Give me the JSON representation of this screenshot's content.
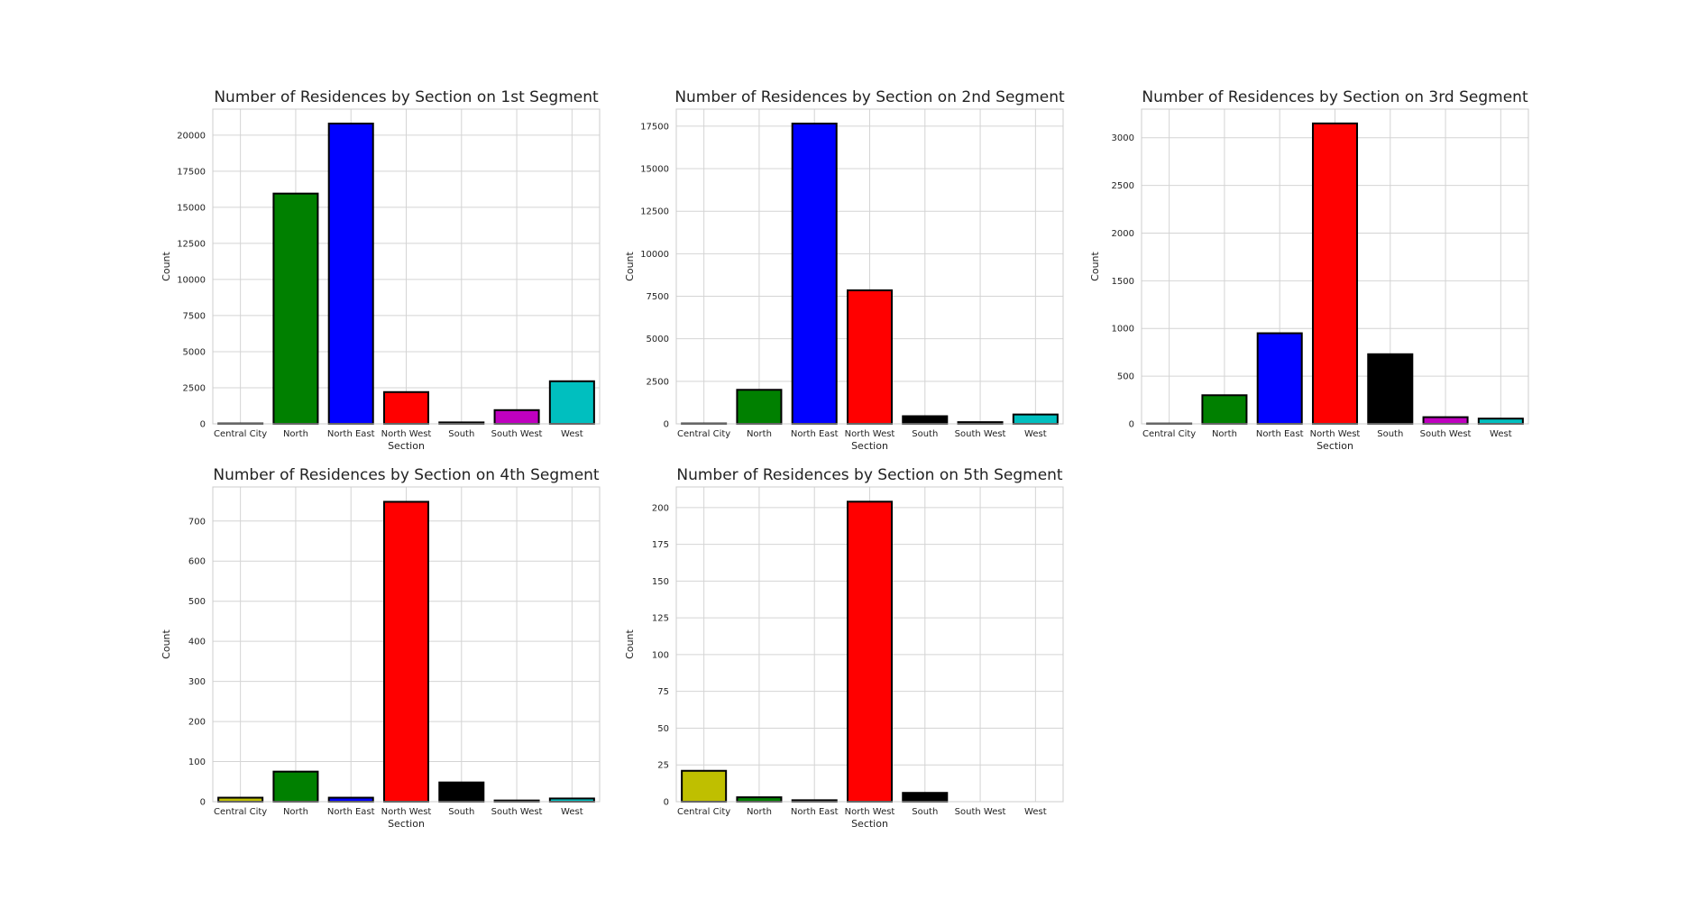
{
  "colors": {
    "yellow": "#bfbf00",
    "green": "#008000",
    "blue": "#0000ff",
    "red": "#ff0000",
    "black": "#000000",
    "magenta": "#bf00bf",
    "cyan": "#00bfbf",
    "grid": "#d4d4d4",
    "edge": "#000000"
  },
  "chart_data": [
    {
      "type": "bar",
      "title": "Number of Residences by Section on 1st Segment",
      "xlabel": "Section",
      "ylabel": "Count",
      "categories": [
        "Central City",
        "North",
        "North East",
        "North West",
        "South",
        "South West",
        "West"
      ],
      "values": [
        25,
        15950,
        20800,
        2200,
        100,
        950,
        2950
      ],
      "bar_colors": [
        "yellow",
        "green",
        "blue",
        "red",
        "black",
        "magenta",
        "cyan"
      ],
      "ylim": [
        0,
        21800
      ],
      "yticks": [
        0,
        2500,
        5000,
        7500,
        10000,
        12500,
        15000,
        17500,
        20000
      ],
      "grid": true
    },
    {
      "type": "bar",
      "title": "Number of Residences by Section on 2nd Segment",
      "xlabel": "Section",
      "ylabel": "Count",
      "categories": [
        "Central City",
        "North",
        "North East",
        "North West",
        "South",
        "South West",
        "West"
      ],
      "values": [
        20,
        2000,
        17650,
        7850,
        450,
        100,
        550
      ],
      "bar_colors": [
        "yellow",
        "green",
        "blue",
        "red",
        "black",
        "magenta",
        "cyan"
      ],
      "ylim": [
        0,
        18500
      ],
      "yticks": [
        0,
        2500,
        5000,
        7500,
        10000,
        12500,
        15000,
        17500
      ],
      "grid": true
    },
    {
      "type": "bar",
      "title": "Number of Residences by Section on 3rd Segment",
      "xlabel": "Section",
      "ylabel": "Count",
      "categories": [
        "Central City",
        "North",
        "North East",
        "North West",
        "South",
        "South West",
        "West"
      ],
      "values": [
        3,
        300,
        950,
        3150,
        730,
        70,
        55
      ],
      "bar_colors": [
        "yellow",
        "green",
        "blue",
        "red",
        "black",
        "magenta",
        "cyan"
      ],
      "ylim": [
        0,
        3300
      ],
      "yticks": [
        0,
        500,
        1000,
        1500,
        2000,
        2500,
        3000
      ],
      "grid": true
    },
    {
      "type": "bar",
      "title": "Number of Residences by Section on 4th Segment",
      "xlabel": "Section",
      "ylabel": "Count",
      "categories": [
        "Central City",
        "North",
        "North East",
        "North West",
        "South",
        "South West",
        "West"
      ],
      "values": [
        10,
        75,
        10,
        748,
        48,
        3,
        8
      ],
      "bar_colors": [
        "yellow",
        "green",
        "blue",
        "red",
        "black",
        "magenta",
        "cyan"
      ],
      "ylim": [
        0,
        785
      ],
      "yticks": [
        0,
        100,
        200,
        300,
        400,
        500,
        600,
        700
      ],
      "grid": true
    },
    {
      "type": "bar",
      "title": "Number of Residences by Section on 5th Segment",
      "xlabel": "Section",
      "ylabel": "Count",
      "categories": [
        "Central City",
        "North",
        "North East",
        "North West",
        "South",
        "South West",
        "West"
      ],
      "values": [
        21,
        3,
        1,
        204,
        6,
        0,
        0
      ],
      "bar_colors": [
        "yellow",
        "green",
        "blue",
        "red",
        "black",
        "magenta",
        "cyan"
      ],
      "ylim": [
        0,
        214
      ],
      "yticks": [
        0,
        25,
        50,
        75,
        100,
        125,
        150,
        175,
        200
      ],
      "grid": true
    }
  ]
}
